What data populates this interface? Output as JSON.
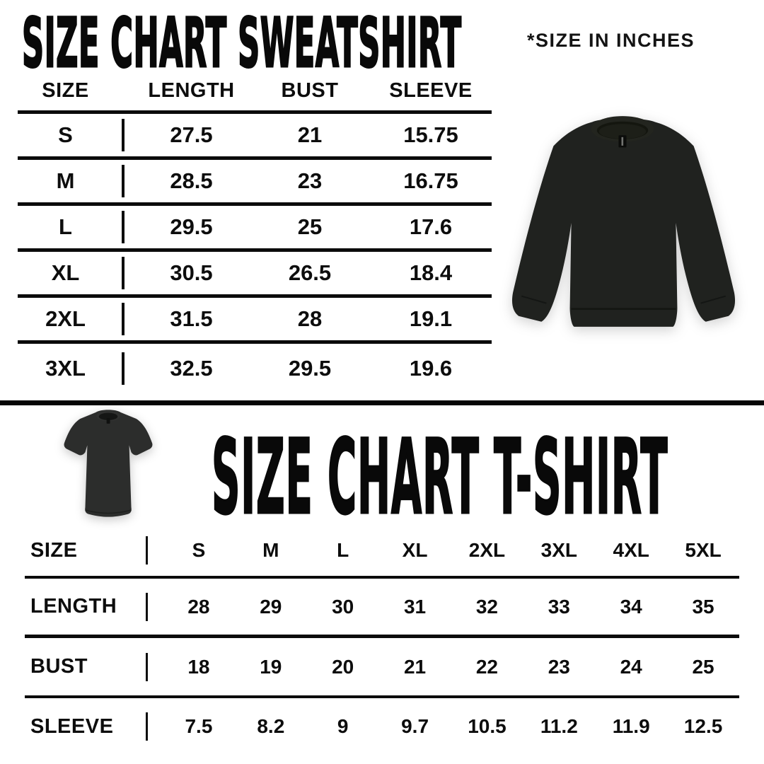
{
  "sweatshirt_section": {
    "title": "SIZE CHART SWEATSHIRT",
    "unit_note": "*SIZE IN INCHES",
    "table": {
      "columns": [
        "SIZE",
        "LENGTH",
        "BUST",
        "SLEEVE"
      ],
      "rows": [
        {
          "size": "S",
          "length": "27.5",
          "bust": "21",
          "sleeve": "15.75"
        },
        {
          "size": "M",
          "length": "28.5",
          "bust": "23",
          "sleeve": "16.75"
        },
        {
          "size": "L",
          "length": "29.5",
          "bust": "25",
          "sleeve": "17.6"
        },
        {
          "size": "XL",
          "length": "30.5",
          "bust": "26.5",
          "sleeve": "18.4"
        },
        {
          "size": "2XL",
          "length": "31.5",
          "bust": "28",
          "sleeve": "19.1"
        },
        {
          "size": "3XL",
          "length": "32.5",
          "bust": "29.5",
          "sleeve": "19.6"
        }
      ]
    },
    "image_alt": "black crewneck sweatshirt"
  },
  "tshirt_section": {
    "title": "SIZE CHART T-SHIRT",
    "table": {
      "row_header": "SIZE",
      "sizes": [
        "S",
        "M",
        "L",
        "XL",
        "2XL",
        "3XL",
        "4XL",
        "5XL"
      ],
      "rows": [
        {
          "label": "LENGTH",
          "values": [
            "28",
            "29",
            "30",
            "31",
            "32",
            "33",
            "34",
            "35"
          ]
        },
        {
          "label": "BUST",
          "values": [
            "18",
            "19",
            "20",
            "21",
            "22",
            "23",
            "24",
            "25"
          ]
        },
        {
          "label": "SLEEVE",
          "values": [
            "7.5",
            "8.2",
            "9",
            "9.7",
            "10.5",
            "11.2",
            "11.9",
            "12.5"
          ]
        }
      ]
    },
    "image_alt": "black t-shirt"
  },
  "colors": {
    "ink": "#0d0d0d",
    "background": "#ffffff",
    "sweatshirt_garment": "#20221f",
    "tshirt_garment": "#2c2d2c"
  }
}
